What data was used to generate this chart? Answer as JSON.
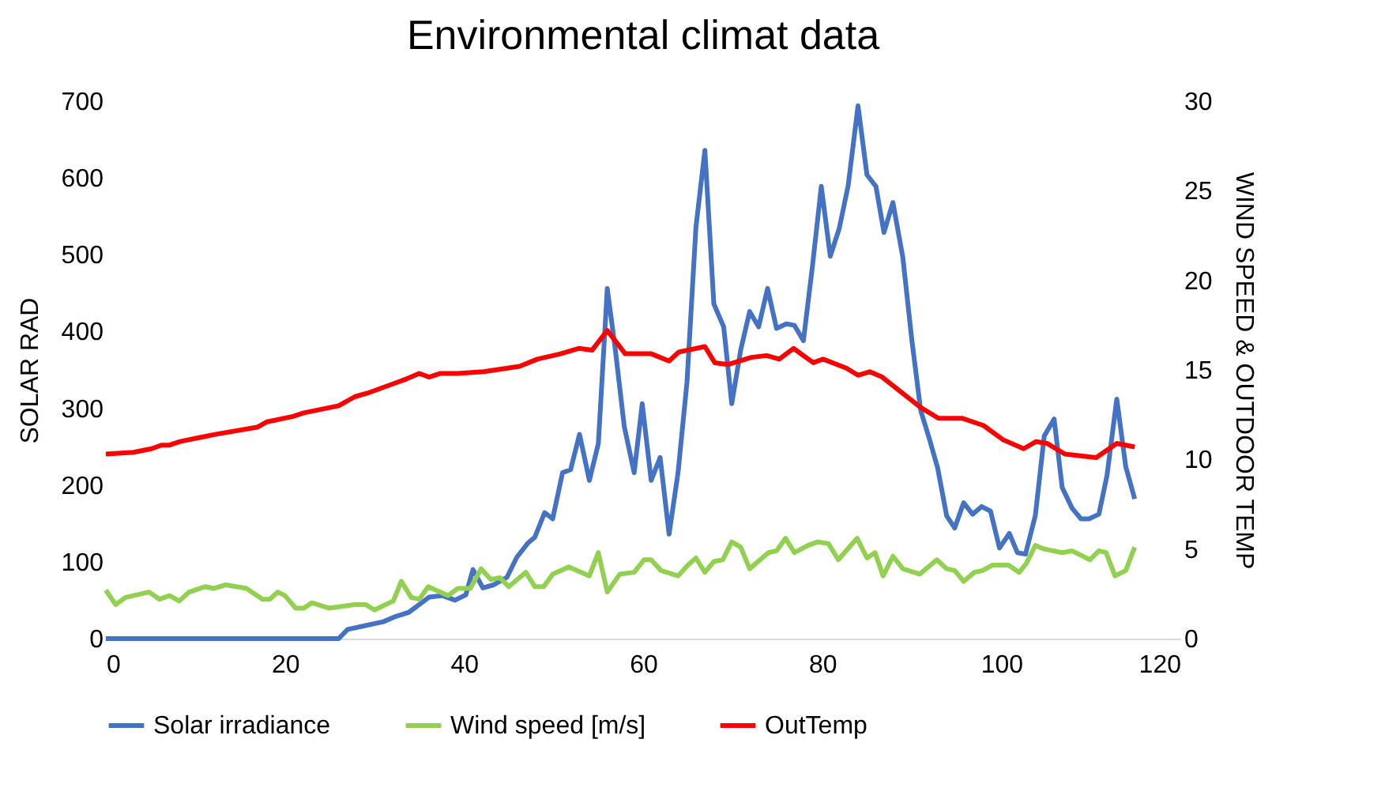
{
  "chart_data": {
    "type": "line",
    "title": "Environmental climat data",
    "ylabel": "SOLAR RAD",
    "y2label": "WIND SPEED & OUTDOOR TEMP",
    "xlim": [
      0,
      120
    ],
    "xticks": [
      0,
      20,
      40,
      60,
      80,
      100,
      120
    ],
    "ylim": [
      0,
      700
    ],
    "yticks": [
      0,
      100,
      200,
      300,
      400,
      500,
      600,
      700
    ],
    "y2lim": [
      0,
      30
    ],
    "y2ticks": [
      0,
      5,
      10,
      15,
      20,
      25,
      30
    ],
    "legend": "bottom",
    "series": [
      {
        "name": "Solar irradiance",
        "color": "#4472c4",
        "axis": "y",
        "x": [
          0,
          26,
          27,
          29,
          31,
          32.4,
          33.8,
          36.1,
          37.6,
          39,
          40.2,
          41,
          42.1,
          43.3,
          44.8,
          45.9,
          47.1,
          47.9,
          49,
          49.9,
          51,
          51.9,
          52.9,
          54,
          55,
          56,
          56.9,
          57.9,
          59,
          59.9,
          60.9,
          61.9,
          62.9,
          63.9,
          64.9,
          65.9,
          66.9,
          67.9,
          69,
          69.9,
          70.9,
          71.9,
          72.9,
          73.9,
          74.9,
          76,
          76.9,
          77.9,
          78.9,
          79.9,
          80.9,
          81.9,
          82.9,
          84,
          85,
          86,
          86.9,
          87.9,
          89,
          90,
          91,
          92,
          92.9,
          93.9,
          94.8,
          95.8,
          96.8,
          97.8,
          98.8,
          99.8,
          100.9,
          101.8,
          102.7,
          103.8,
          104.8,
          105.9,
          106.8,
          107.9,
          108.9,
          109.8,
          110.9,
          111.8,
          112.9,
          113.9,
          114.9
        ],
        "values": [
          0,
          0,
          12,
          17,
          22,
          29,
          34,
          54,
          56,
          50,
          57,
          90,
          66,
          70,
          80,
          106,
          124,
          132,
          164,
          156,
          216,
          220,
          266,
          206,
          254,
          456,
          376,
          276,
          216,
          306,
          206,
          236,
          136,
          216,
          334,
          536,
          636,
          436,
          406,
          306,
          376,
          426,
          406,
          456,
          404,
          410,
          408,
          388,
          484,
          589,
          498,
          534,
          590,
          694,
          604,
          589,
          529,
          568,
          497,
          390,
          297,
          259,
          222,
          160,
          144,
          177,
          162,
          172,
          166,
          118,
          137,
          112,
          110,
          160,
          264,
          286,
          197,
          170,
          156,
          156,
          162,
          212,
          312,
          224,
          182
        ]
      },
      {
        "name": "Wind speed [m/s]",
        "color": "#92d050",
        "axis": "y2",
        "x": [
          0,
          1.1,
          2.2,
          4.8,
          6,
          7.1,
          8.2,
          9.3,
          11.1,
          12,
          13.4,
          15.7,
          17.5,
          18.3,
          19.2,
          20,
          21.2,
          22.1,
          23,
          24.9,
          27.8,
          29,
          30,
          32.1,
          33,
          34.1,
          35,
          36,
          38.2,
          39.3,
          40.7,
          41.9,
          43,
          44,
          45,
          46.9,
          47.9,
          48.9,
          49.9,
          51.7,
          54,
          55,
          56,
          57.4,
          59,
          60.1,
          60.9,
          62,
          63.9,
          65,
          65.9,
          66.9,
          67.9,
          68.9,
          69.9,
          70.9,
          71.9,
          74,
          74.9,
          75.9,
          76.9,
          78.4,
          79.5,
          80.7,
          81.8,
          83.9,
          85,
          85.9,
          86.8,
          87.9,
          89,
          90.9,
          92.8,
          93.9,
          94.8,
          95.8,
          97,
          97.9,
          99,
          100.8,
          102,
          102.8,
          103.8,
          104.8,
          106.8,
          107.9,
          109.9,
          110.9,
          111.7,
          112.7,
          113.9,
          114.9
        ],
        "values": [
          2.7,
          1.9,
          2.3,
          2.6,
          2.2,
          2.4,
          2.1,
          2.6,
          2.9,
          2.8,
          3.0,
          2.8,
          2.2,
          2.2,
          2.6,
          2.4,
          1.7,
          1.7,
          2.0,
          1.7,
          1.9,
          1.9,
          1.6,
          2.1,
          3.2,
          2.3,
          2.2,
          2.9,
          2.4,
          2.8,
          2.8,
          3.9,
          3.3,
          3.4,
          2.9,
          3.7,
          2.9,
          2.9,
          3.6,
          4.0,
          3.5,
          4.8,
          2.6,
          3.6,
          3.7,
          4.4,
          4.4,
          3.8,
          3.5,
          4.1,
          4.5,
          3.7,
          4.3,
          4.4,
          5.4,
          5.1,
          3.9,
          4.8,
          4.9,
          5.6,
          4.8,
          5.2,
          5.4,
          5.3,
          4.4,
          5.6,
          4.5,
          4.8,
          3.5,
          4.6,
          3.9,
          3.6,
          4.4,
          3.9,
          3.8,
          3.2,
          3.7,
          3.8,
          4.1,
          4.1,
          3.7,
          4.2,
          5.2,
          5.0,
          4.8,
          4.9,
          4.4,
          4.9,
          4.8,
          3.5,
          3.8,
          5.1
        ]
      },
      {
        "name": "OutTemp",
        "color": "#ff0000",
        "axis": "y2",
        "x": [
          0,
          3.1,
          5.1,
          6.2,
          7.1,
          8.3,
          12.2,
          16.9,
          18,
          20.9,
          22.1,
          26,
          27.8,
          29.2,
          33.6,
          35,
          36.1,
          37.3,
          39.3,
          42.2,
          46.2,
          48.2,
          50.8,
          52.8,
          54.3,
          56,
          58,
          60.9,
          62.9,
          64,
          66.9,
          68,
          69.5,
          72.1,
          73.8,
          75.2,
          76.8,
          79,
          80.1,
          82.7,
          84,
          85.3,
          86.7,
          91,
          93,
          95.6,
          98,
          100.2,
          102.5,
          103.9,
          105.1,
          107.1,
          110.6,
          112.9,
          114.9
        ],
        "values": [
          10.3,
          10.4,
          10.6,
          10.8,
          10.8,
          11.0,
          11.4,
          11.8,
          12.1,
          12.4,
          12.6,
          13.0,
          13.5,
          13.7,
          14.5,
          14.8,
          14.6,
          14.8,
          14.8,
          14.9,
          15.2,
          15.6,
          15.9,
          16.2,
          16.1,
          17.2,
          15.9,
          15.9,
          15.5,
          16.0,
          16.3,
          15.4,
          15.3,
          15.7,
          15.8,
          15.6,
          16.2,
          15.4,
          15.6,
          15.1,
          14.7,
          14.9,
          14.6,
          12.9,
          12.3,
          12.3,
          11.9,
          11.1,
          10.6,
          11.0,
          10.9,
          10.3,
          10.1,
          10.9,
          10.7
        ]
      }
    ]
  }
}
